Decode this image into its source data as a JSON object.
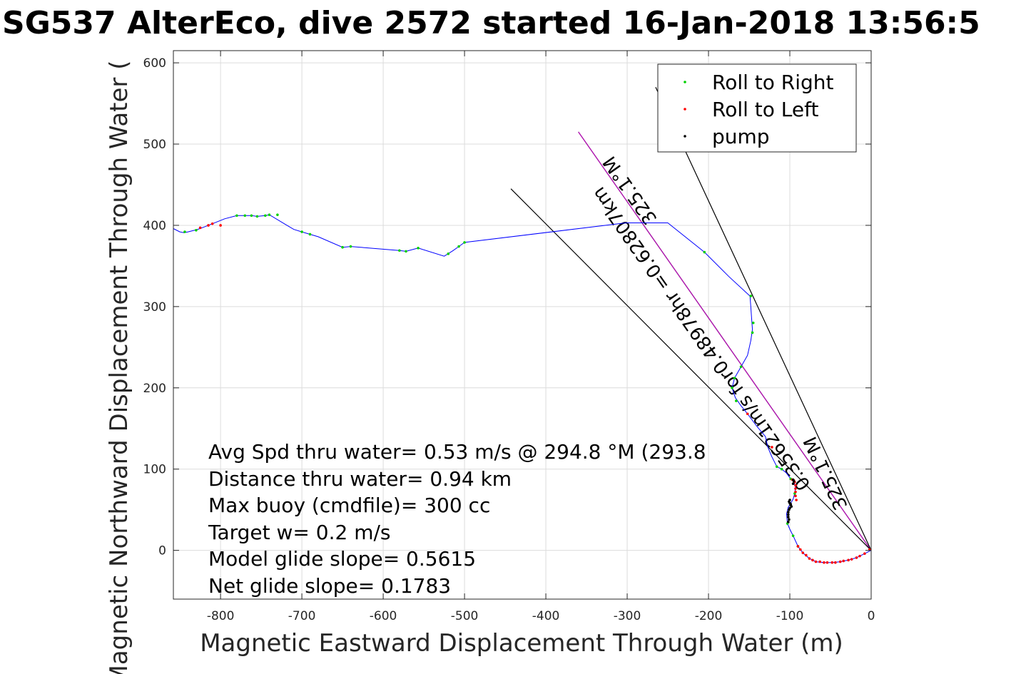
{
  "chart_data": {
    "type": "scatter",
    "title": "SG537 AlterEco, dive 2572 started 16-Jan-2018 13:56:5",
    "xlabel": "Magnetic Eastward Displacement Through Water (m)",
    "ylabel": "Magnetic Northward Displacement Through Water (",
    "xlim": [
      -858,
      0
    ],
    "ylim": [
      -60,
      615
    ],
    "xticks": [
      -800,
      -700,
      -600,
      -500,
      -400,
      -300,
      -200,
      -100,
      0
    ],
    "yticks": [
      0,
      100,
      200,
      300,
      400,
      500,
      600
    ],
    "grid": true,
    "legend_position": "top-right",
    "legend": [
      {
        "label": "Roll to Right",
        "color": "#00d000"
      },
      {
        "label": "Roll to Left",
        "color": "#ff0000"
      },
      {
        "label": "pump",
        "color": "#000000"
      }
    ],
    "track": {
      "name": "track",
      "color": "#0000ff",
      "points": [
        [
          0,
          0
        ],
        [
          -8,
          -4
        ],
        [
          -18,
          -9
        ],
        [
          -28,
          -12
        ],
        [
          -38,
          -14
        ],
        [
          -48,
          -15
        ],
        [
          -58,
          -15
        ],
        [
          -68,
          -14
        ],
        [
          -76,
          -10
        ],
        [
          -84,
          -3
        ],
        [
          -90,
          5
        ],
        [
          -96,
          18
        ],
        [
          -100,
          26
        ],
        [
          -103,
          33
        ],
        [
          -104,
          45
        ],
        [
          -102,
          53
        ],
        [
          -99,
          58
        ],
        [
          -96,
          63
        ],
        [
          -94,
          70
        ],
        [
          -93,
          78
        ],
        [
          -95,
          84
        ],
        [
          -99,
          88
        ],
        [
          -104,
          95
        ],
        [
          -110,
          100
        ],
        [
          -116,
          103
        ],
        [
          -122,
          115
        ],
        [
          -127,
          127
        ],
        [
          -130,
          140
        ],
        [
          -140,
          152
        ],
        [
          -152,
          168
        ],
        [
          -160,
          178
        ],
        [
          -167,
          188
        ],
        [
          -171,
          200
        ],
        [
          -168,
          212
        ],
        [
          -160,
          226
        ],
        [
          -152,
          240
        ],
        [
          -148,
          258
        ],
        [
          -146,
          272
        ],
        [
          -147,
          286
        ],
        [
          -148,
          300
        ],
        [
          -149,
          313
        ],
        [
          -175,
          337
        ],
        [
          -205,
          367
        ],
        [
          -250,
          403
        ],
        [
          -302,
          403
        ],
        [
          -500,
          379
        ],
        [
          -507,
          374
        ],
        [
          -514,
          369
        ],
        [
          -525,
          362
        ],
        [
          -557,
          372
        ],
        [
          -572,
          368
        ],
        [
          -580,
          369
        ],
        [
          -640,
          374
        ],
        [
          -650,
          373
        ],
        [
          -680,
          386
        ],
        [
          -690,
          389
        ],
        [
          -700,
          392
        ],
        [
          -710,
          395
        ],
        [
          -720,
          401
        ],
        [
          -740,
          413
        ],
        [
          -745,
          412
        ],
        [
          -755,
          411
        ],
        [
          -762,
          412
        ],
        [
          -780,
          412
        ],
        [
          -795,
          408
        ],
        [
          -810,
          402
        ],
        [
          -820,
          398
        ],
        [
          -828,
          395
        ],
        [
          -840,
          392
        ],
        [
          -845,
          391
        ],
        [
          -850,
          392
        ],
        [
          -858,
          396
        ]
      ]
    },
    "roll_right_points": [
      [
        -500,
        379
      ],
      [
        -507,
        374
      ],
      [
        -520,
        365
      ],
      [
        -557,
        372
      ],
      [
        -572,
        368
      ],
      [
        -580,
        369
      ],
      [
        -640,
        374
      ],
      [
        -650,
        373
      ],
      [
        -690,
        389
      ],
      [
        -700,
        392
      ],
      [
        -740,
        413
      ],
      [
        -745,
        412
      ],
      [
        -755,
        411
      ],
      [
        -762,
        412
      ],
      [
        -780,
        412
      ],
      [
        -205,
        367
      ],
      [
        -148,
        313
      ],
      [
        -145,
        280
      ],
      [
        -146,
        268
      ],
      [
        -160,
        226
      ],
      [
        -168,
        212
      ],
      [
        -171,
        200
      ],
      [
        -166,
        184
      ],
      [
        -116,
        103
      ],
      [
        -110,
        100
      ],
      [
        -99,
        88
      ],
      [
        -94,
        70
      ],
      [
        -103,
        33
      ],
      [
        -96,
        18
      ],
      [
        -90,
        5
      ],
      [
        -830,
        394
      ],
      [
        -844,
        392
      ],
      [
        -770,
        412
      ],
      [
        -730,
        413
      ]
    ],
    "roll_left_points": [
      [
        -2,
        1
      ],
      [
        -8,
        -4
      ],
      [
        -14,
        -7
      ],
      [
        -18,
        -9
      ],
      [
        -24,
        -11
      ],
      [
        -28,
        -12
      ],
      [
        -34,
        -13
      ],
      [
        -38,
        -14
      ],
      [
        -44,
        -15
      ],
      [
        -48,
        -15
      ],
      [
        -54,
        -15
      ],
      [
        -58,
        -15
      ],
      [
        -63,
        -14
      ],
      [
        -68,
        -14
      ],
      [
        -72,
        -12
      ],
      [
        -76,
        -10
      ],
      [
        -80,
        -6
      ],
      [
        -84,
        -3
      ],
      [
        -87,
        1
      ],
      [
        -90,
        5
      ],
      [
        -92,
        62
      ],
      [
        -93,
        67
      ],
      [
        -93,
        72
      ],
      [
        -93,
        76
      ],
      [
        -93,
        80
      ],
      [
        -94,
        84
      ],
      [
        -95,
        86
      ],
      [
        -97,
        87
      ],
      [
        -122,
        127
      ],
      [
        -152,
        168
      ],
      [
        -800,
        400
      ],
      [
        -810,
        402
      ],
      [
        -815,
        400
      ],
      [
        -825,
        397
      ]
    ],
    "pump_points": [
      [
        -98,
        54
      ],
      [
        -99,
        56
      ],
      [
        -100,
        58
      ],
      [
        -101,
        60
      ],
      [
        -100,
        62
      ],
      [
        -101,
        50
      ],
      [
        -102,
        47
      ],
      [
        -102,
        44
      ],
      [
        -101,
        38
      ],
      [
        -102,
        35
      ],
      [
        -102,
        41
      ],
      [
        -100,
        52
      ],
      [
        -99,
        57
      ],
      [
        -96,
        82
      ],
      [
        -95,
        85
      ],
      [
        -96,
        87
      ]
    ],
    "lines": [
      {
        "from": [
          0,
          0
        ],
        "to": [
          -360,
          515
        ],
        "color": "#000000"
      },
      {
        "from": [
          0,
          0
        ],
        "to": [
          -360,
          515
        ],
        "color": "#cc00cc"
      },
      {
        "from": [
          0,
          0
        ],
        "to": [
          -443,
          445
        ],
        "color": "#000000"
      },
      {
        "from": [
          0,
          0
        ],
        "to": [
          -265,
          570
        ],
        "color": "#000000"
      }
    ],
    "annotations": [
      {
        "text": "0.35621m/s for0.48978hr =0.62807km",
        "color": "#000000"
      },
      {
        "text": "325.1°M",
        "color": "#000000"
      },
      {
        "text": "325.1°M",
        "color": "#000000"
      }
    ],
    "stats": [
      "Avg Spd thru water=  0.53 m/s @ 294.8 °M (293.8",
      "Distance thru water=  0.94 km",
      "Max buoy (cmdfile)= 300 cc",
      "Target w= 0.2 m/s",
      "Model glide slope= 0.5615",
      "Net glide slope= 0.1783"
    ]
  }
}
